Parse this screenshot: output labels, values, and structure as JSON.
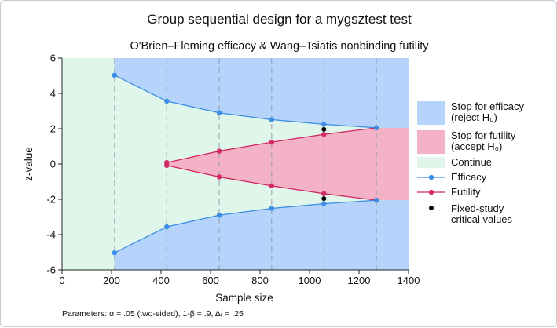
{
  "chart_data": {
    "type": "line",
    "title": "Group sequential design for a mygsztest test",
    "subtitle": "O'Brien–Fleming efficacy & Wang–Tsiatis nonbinding futility",
    "xlabel": "Sample size",
    "ylabel": "z-value",
    "xlim": [
      0,
      1400
    ],
    "ylim": [
      -6,
      6
    ],
    "xticks": [
      0,
      200,
      400,
      600,
      800,
      1000,
      1200,
      1400
    ],
    "yticks": [
      -6,
      -4,
      -2,
      0,
      2,
      4,
      6
    ],
    "grid": false,
    "legend_position": "right",
    "note": "Parameters: α = .05 (two-sided), 1-β = .9, Δᵣ = .25",
    "look_sample_sizes": [
      212,
      423,
      635,
      847,
      1058,
      1270
    ],
    "series": [
      {
        "name": "Efficacy",
        "x": [
          212,
          423,
          635,
          847,
          1058,
          1270
        ],
        "upper": [
          5.03,
          3.56,
          2.9,
          2.51,
          2.25,
          2.05
        ],
        "lower": [
          -5.03,
          -3.56,
          -2.9,
          -2.51,
          -2.25,
          -2.05
        ],
        "color": "#3b8de6"
      },
      {
        "name": "Futility",
        "x": [
          423,
          635,
          847,
          1058,
          1270
        ],
        "upper": [
          0.08,
          0.73,
          1.24,
          1.68,
          2.05
        ],
        "lower": [
          -0.08,
          -0.73,
          -1.24,
          -1.68,
          -2.05
        ],
        "color": "#d42a63"
      },
      {
        "name": "Fixed-study critical values",
        "x": [
          1058,
          1058
        ],
        "values": [
          1.96,
          -1.96
        ],
        "color": "#000000"
      }
    ],
    "regions": {
      "efficacy": {
        "label": "Stop for efficacy (reject H₀)",
        "color": "#b5d3fb"
      },
      "futility": {
        "label": "Stop for futility (accept H₀)",
        "color": "#f3b2c5"
      },
      "continue": {
        "label": "Continue",
        "color": "#e1f6ea"
      }
    },
    "legend": [
      {
        "kind": "patch",
        "lines": [
          "Stop for efficacy",
          "(reject H₀)"
        ],
        "color": "#b5d3fb"
      },
      {
        "kind": "patch",
        "lines": [
          "Stop for futility",
          "(accept H₀)"
        ],
        "color": "#f3b2c5"
      },
      {
        "kind": "patch",
        "lines": [
          "Continue"
        ],
        "color": "#e1f6ea"
      },
      {
        "kind": "line",
        "lines": [
          "Efficacy"
        ],
        "color": "#3b8de6"
      },
      {
        "kind": "line",
        "lines": [
          "Futility"
        ],
        "color": "#d42a63"
      },
      {
        "kind": "dot",
        "lines": [
          "Fixed-study",
          "critical values"
        ],
        "color": "#000000"
      }
    ]
  }
}
